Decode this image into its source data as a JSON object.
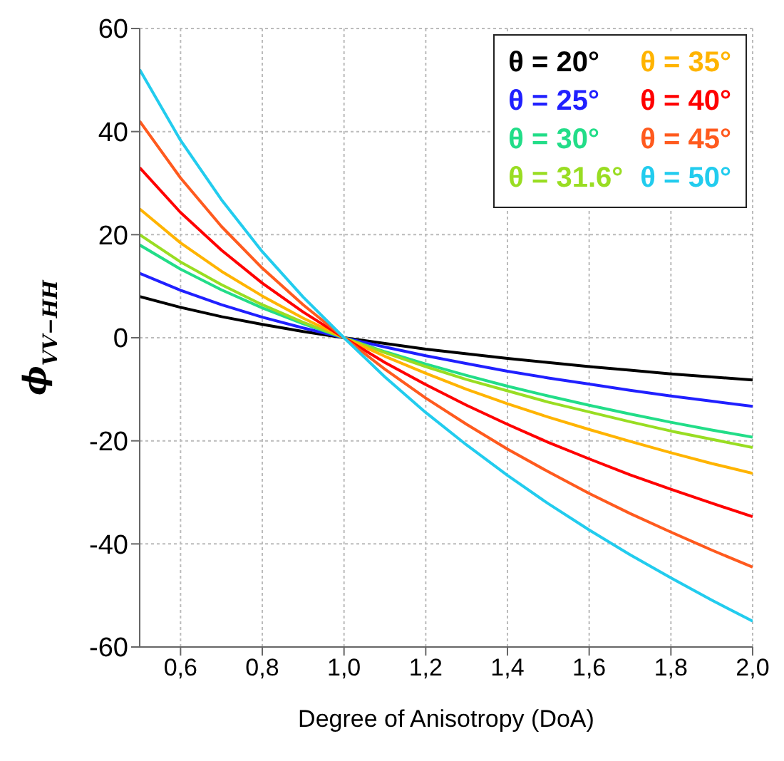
{
  "chart_data": {
    "type": "line",
    "xlabel": "Degree of Anisotropy (DoA)",
    "ylabel": "ϕ$_{VV−HH}$",
    "x": [
      0.5,
      0.6,
      0.7,
      0.8,
      0.9,
      1.0,
      1.1,
      1.2,
      1.3,
      1.4,
      1.5,
      1.6,
      1.7,
      1.8,
      1.9,
      2.0
    ],
    "xlim": [
      0.5,
      2.0
    ],
    "xticks": [
      {
        "value": 0.6,
        "label": "0,6"
      },
      {
        "value": 0.8,
        "label": "0,8"
      },
      {
        "value": 1.0,
        "label": "1,0"
      },
      {
        "value": 1.2,
        "label": "1,2"
      },
      {
        "value": 1.4,
        "label": "1,4"
      },
      {
        "value": 1.6,
        "label": "1,6"
      },
      {
        "value": 1.8,
        "label": "1,8"
      },
      {
        "value": 2.0,
        "label": "2,0"
      }
    ],
    "ylim": [
      -60,
      60
    ],
    "yticks": [
      -60,
      -40,
      -20,
      0,
      20,
      40,
      60
    ],
    "grid": true,
    "legend": "top right",
    "marker": "none",
    "line_style": "solid",
    "series": [
      {
        "name": "θ = 20°",
        "color": "#000000",
        "values": [
          8,
          5.9,
          4.1,
          2.6,
          1.2,
          0,
          -1.1,
          -2.2,
          -3.1,
          -4.0,
          -4.8,
          -5.6,
          -6.3,
          -7.0,
          -7.6,
          -8.2
        ]
      },
      {
        "name": "θ = 25°",
        "color": "#2020ff",
        "values": [
          12.5,
          9.2,
          6.4,
          4.0,
          1.9,
          0,
          -1.8,
          -3.5,
          -5.0,
          -6.5,
          -7.8,
          -9.0,
          -10.2,
          -11.3,
          -12.3,
          -13.3
        ]
      },
      {
        "name": "θ = 30°",
        "color": "#22dd88",
        "values": [
          18,
          13.3,
          9.3,
          5.8,
          2.7,
          0,
          -2.7,
          -5.1,
          -7.3,
          -9.4,
          -11.3,
          -13.1,
          -14.8,
          -16.4,
          -17.9,
          -19.3
        ]
      },
      {
        "name": "θ = 31.6°",
        "color": "#99dd22",
        "values": [
          20,
          14.7,
          10.3,
          6.4,
          3.0,
          0,
          -2.9,
          -5.6,
          -8.1,
          -10.3,
          -12.5,
          -14.4,
          -16.3,
          -18.1,
          -19.7,
          -21.3
        ]
      },
      {
        "name": "θ = 35°",
        "color": "#ffb400",
        "values": [
          25,
          18.4,
          12.9,
          8.1,
          3.8,
          0,
          -3.6,
          -6.9,
          -10.0,
          -12.8,
          -15.4,
          -17.8,
          -20.1,
          -22.3,
          -24.4,
          -26.3
        ]
      },
      {
        "name": "θ = 40°",
        "color": "#ff0000",
        "values": [
          33,
          24.3,
          17.0,
          10.6,
          5.0,
          0,
          -4.8,
          -9.1,
          -13.1,
          -16.8,
          -20.3,
          -23.5,
          -26.6,
          -29.4,
          -32.1,
          -34.7
        ]
      },
      {
        "name": "θ = 45°",
        "color": "#ff5a1e",
        "values": [
          42,
          31.0,
          21.6,
          13.5,
          6.4,
          0,
          -6.1,
          -11.7,
          -16.8,
          -21.6,
          -26.0,
          -30.2,
          -34.1,
          -37.7,
          -41.2,
          -44.5
        ]
      },
      {
        "name": "θ = 50°",
        "color": "#22ccee",
        "values": [
          52,
          38.3,
          26.8,
          16.7,
          7.9,
          0,
          -7.6,
          -14.5,
          -20.8,
          -26.7,
          -32.2,
          -37.3,
          -42.1,
          -46.6,
          -50.9,
          -55
        ]
      }
    ]
  }
}
